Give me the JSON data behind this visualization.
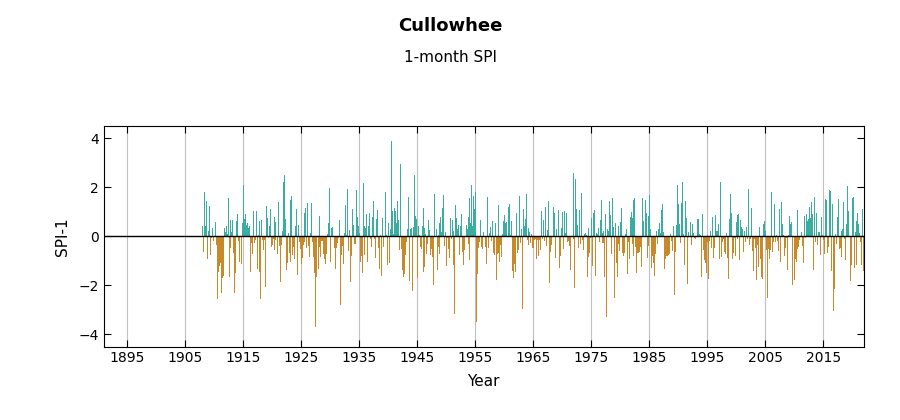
{
  "title": "Cullowhee",
  "subtitle": "1-month SPI",
  "xlabel": "Year",
  "ylabel": "SPI-1",
  "ylim": [
    -4.5,
    4.5
  ],
  "yticks": [
    -4,
    -2,
    0,
    2,
    4
  ],
  "xlim": [
    1891,
    2022
  ],
  "xticks": [
    1895,
    1905,
    1915,
    1925,
    1935,
    1945,
    1955,
    1965,
    1975,
    1985,
    1995,
    2005,
    2015
  ],
  "data_start_year": 1908,
  "data_end_year": 2021,
  "positive_color": "#3aada0",
  "negative_color": "#c8892a",
  "zero_line_color": "#000000",
  "grid_color": "#c0c0c0",
  "background_color": "#ffffff",
  "title_fontsize": 13,
  "subtitle_fontsize": 11,
  "axis_label_fontsize": 11,
  "tick_fontsize": 10,
  "tick_color": "#000000"
}
